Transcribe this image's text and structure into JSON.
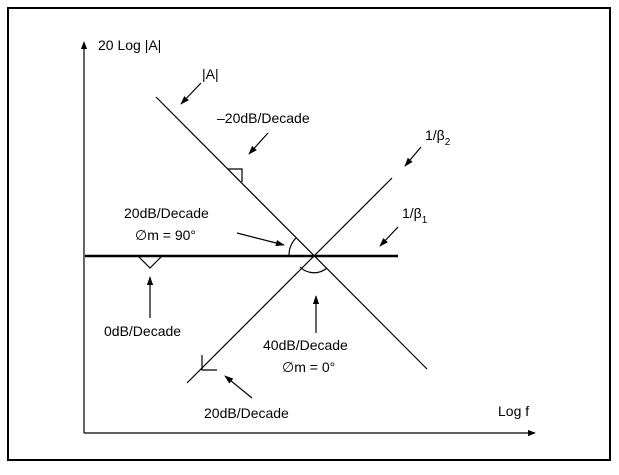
{
  "axes": {
    "y_label": "20 Log |A|",
    "x_label": "Log f"
  },
  "curves": {
    "open_loop": "|A|",
    "feedback_2": {
      "text": "1/β",
      "subscript": "2"
    },
    "feedback_1": {
      "text": "1/β",
      "subscript": "1"
    }
  },
  "annotations": {
    "slope_open_loop": "–20dB/Decade",
    "slope_upper_label": "20dB/Decade",
    "phase_margin_upper": "∅m = 90°",
    "slope_flat": "0dB/Decade",
    "slope_intersection": "40dB/Decade",
    "phase_margin_intersection": "∅m = 0°",
    "slope_lower": "20dB/Decade"
  }
}
